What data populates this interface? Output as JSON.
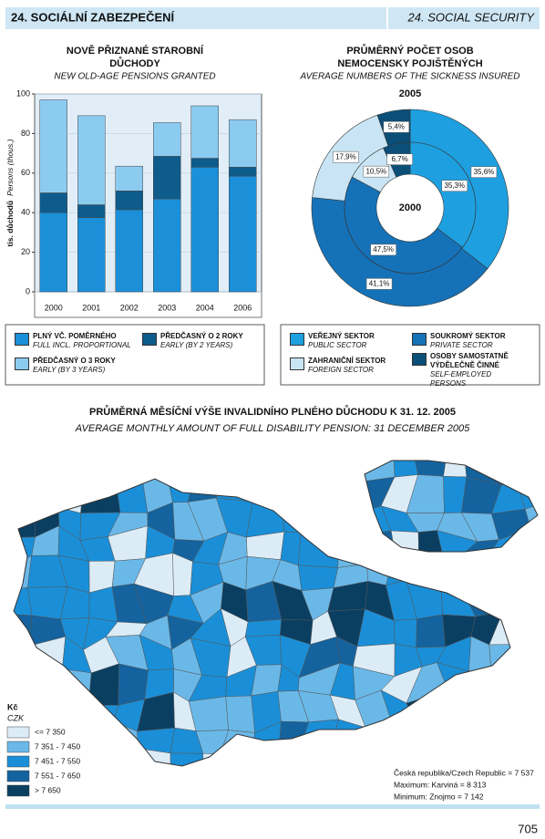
{
  "header": {
    "title": "24. SOCIÁLNÍ ZABEZPEČENÍ",
    "title_en": "24. SOCIAL SECURITY"
  },
  "chart_data": [
    {
      "type": "bar",
      "stacked": true,
      "title": [
        "NOVĚ PŘIZNANÉ STAROBNÍ",
        "DŮCHODY"
      ],
      "subtitle": "NEW OLD-AGE PENSIONS GRANTED",
      "ylabel": "tis. důchodů",
      "ylabel_en": "Persons (thous.)",
      "categories": [
        "2000",
        "2001",
        "2002",
        "2003",
        "2004",
        "2006"
      ],
      "series": [
        {
          "name": "PLNÝ VČ. POMĚRNÉHO",
          "name_en": "FULL INCL. PROPORTIONAL",
          "color": "#1b8fd8",
          "values": [
            40,
            37.5,
            41.5,
            47,
            63,
            58.5
          ]
        },
        {
          "name": "PŘEDČASNÝ O 2 ROKY",
          "name_en": "EARLY (BY 2 YEARS)",
          "color": "#0e5c8c",
          "values": [
            10,
            6.5,
            9.5,
            21.5,
            4.5,
            4.5
          ]
        },
        {
          "name": "PŘEDČASNÝ O 3 ROKY",
          "name_en": "EARLY (BY 3 YEARS)",
          "color": "#8ccbf0",
          "values": [
            47,
            45,
            12.5,
            17,
            26.5,
            24
          ]
        }
      ],
      "ylim": [
        0,
        100
      ],
      "yticks": [
        0,
        20,
        40,
        60,
        80,
        100
      ],
      "grid": true
    },
    {
      "type": "pie",
      "donut": true,
      "title": [
        "PRŮMĚRNÝ POČET OSOB",
        "NEMOCENSKY POJIŠTĚNÝCH"
      ],
      "subtitle": "AVERAGE NUMBERS OF THE SICKNESS INSURED",
      "categories": [
        "VEŘEJNÝ SEKTOR",
        "SOUKROMÝ SEKTOR",
        "ZAHRANIČNÍ SEKTOR",
        "OSOBY SAMOSTATNĚ VÝDĚLEČNĚ ČINNÉ"
      ],
      "categories_en": [
        "PUBLIC SECTOR",
        "PRIVATE SECTOR",
        "FOREIGN SECTOR",
        "SELF-EMPLOYED PERSONS"
      ],
      "colors": [
        "#1ea0e0",
        "#1672b8",
        "#c9e5f5",
        "#0b4f78"
      ],
      "series": [
        {
          "name": "2005",
          "values": [
            35.6,
            41.1,
            17.9,
            5.4
          ],
          "value_labels": [
            "35,6%",
            "41,1%",
            "17,9%",
            "5,4%"
          ]
        },
        {
          "name": "2000",
          "values": [
            35.3,
            47.5,
            10.5,
            6.7
          ],
          "value_labels": [
            "35,3%",
            "47,5%",
            "10,5%",
            "6,7%"
          ]
        }
      ]
    }
  ],
  "map": {
    "title": "PRŮMĚRNÁ MĚSÍČNÍ VÝŠE INVALIDNÍHO PLNÉHO DŮCHODU K 31. 12. 2005",
    "subtitle": "AVERAGE MONTHLY AMOUNT OF FULL DISABILITY PENSION: 31 DECEMBER 2005",
    "unit": "Kč",
    "unit_en": "CZK",
    "legend": [
      {
        "label": "<= 7 350",
        "color": "#dcecf7"
      },
      {
        "label": "7 351 - 7 450",
        "color": "#6ab8e8"
      },
      {
        "label": "7 451 - 7 550",
        "color": "#1a8fd8"
      },
      {
        "label": "7 551 - 7 650",
        "color": "#14639e"
      },
      {
        "label": "> 7 650",
        "color": "#0b3f62"
      }
    ],
    "notes": [
      "Česká republika/Czech Republic = 7 537",
      "Maximum: Karviná = 8 313",
      "Minimum: Znojmo = 7 142"
    ]
  },
  "page_number": "705"
}
